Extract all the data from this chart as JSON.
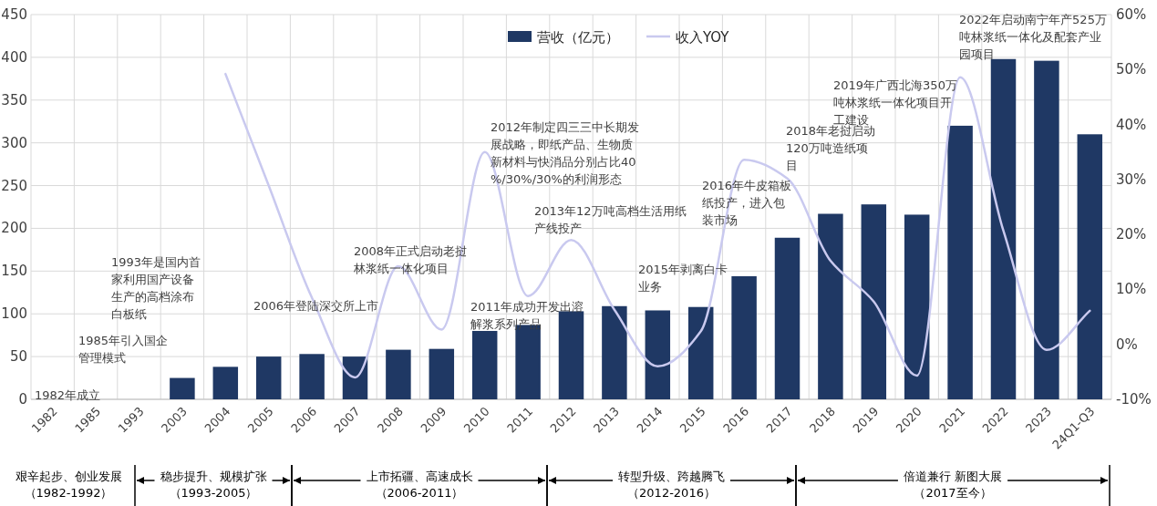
{
  "chart_data": {
    "type": "bar",
    "categories": [
      "1982",
      "1985",
      "1993",
      "2003",
      "2004",
      "2005",
      "2006",
      "2007",
      "2008",
      "2009",
      "2010",
      "2011",
      "2012",
      "2013",
      "2014",
      "2015",
      "2016",
      "2017",
      "2018",
      "2019",
      "2020",
      "2021",
      "2022",
      "2023",
      "24Q1-Q3"
    ],
    "series": [
      {
        "name": "营收（亿元）",
        "color": "#1f3864",
        "values": [
          null,
          null,
          null,
          25,
          38,
          50,
          53,
          50,
          58,
          59,
          80,
          87,
          103,
          109,
          104,
          108,
          144,
          189,
          217,
          228,
          216,
          320,
          398,
          396,
          310
        ]
      },
      {
        "name": "收入YOY",
        "type": "line",
        "axis": "y2",
        "color": "#c9c9ef",
        "values": [
          null,
          null,
          null,
          null,
          49.2,
          28.9,
          8.5,
          -6,
          14.2,
          2.7,
          35,
          8.8,
          19,
          6.3,
          -4,
          2.4,
          33.6,
          30.2,
          15.2,
          7.8,
          -5.7,
          48.6,
          20.7,
          -1,
          6.1
        ]
      }
    ],
    "ylim": [
      0,
      450
    ],
    "yticks": [
      0,
      50,
      100,
      150,
      200,
      250,
      300,
      350,
      400,
      450
    ],
    "y2lim": [
      -10,
      60
    ],
    "y2ticks": [
      {
        "value": -10,
        "label": "-10%"
      },
      {
        "value": 0,
        "label": "0%"
      },
      {
        "value": 10,
        "label": "10%"
      },
      {
        "value": 20,
        "label": "20%"
      },
      {
        "value": 30,
        "label": "30%"
      },
      {
        "value": 40,
        "label": "40%"
      },
      {
        "value": 50,
        "label": "50%"
      },
      {
        "value": 60,
        "label": "60%"
      }
    ],
    "grid": true,
    "legend": "top",
    "annotations": [
      "1982年成立",
      "1985年引入国企管理模式",
      "1993年是国内首家利用国产设备生产的高档涂布白板纸",
      "2006年登陆深交所上市",
      "2008年正式启动老挝林浆纸一体化项目",
      "2011年成功开发出溶解浆系列产品",
      "2012年制定四三三中长期发展战略，即纸产品、生物质新材料与快消品分别占比40%/30%/30%的利润形态",
      "2013年12万吨高档生活用纸产线投产",
      "2015年剥离白卡业务",
      "2016年牛皮箱板纸投产，进入包装市场",
      "2018年老挝启动120万吨造纸项目",
      "2019年广西北海350万吨林浆纸一体化项目开工建设",
      "2022年启动南宁年产525万吨林浆纸一体化及配套产业园项目",
      "艰辛起步、创业发展",
      "（1982-1992）",
      "稳步提升、规模扩张",
      "（1993-2005）",
      "上市拓疆、高速成长",
      "（2006-2011）",
      "转型升级、跨越腾飞",
      "（2012-2016）",
      "倍道兼行 新图大展",
      "（2017至今）"
    ]
  }
}
